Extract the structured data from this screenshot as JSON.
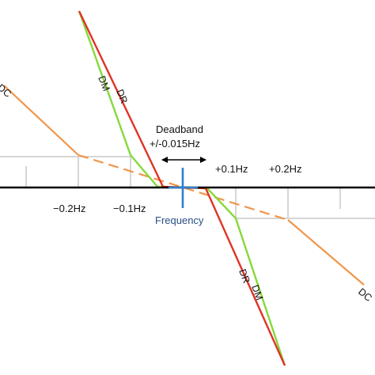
{
  "title": "",
  "axis": {
    "x_label": "Frequency",
    "ticks": [
      {
        "label": "−0.2Hz",
        "value": -0.2
      },
      {
        "label": "−0.1Hz",
        "value": -0.1
      },
      {
        "label": "+0.1Hz",
        "value": 0.1
      },
      {
        "label": "+0.2Hz",
        "value": 0.2
      }
    ]
  },
  "deadband": {
    "line1": "Deadband",
    "line2": "+/-0.015Hz",
    "half_width_hz": 0.015
  },
  "curves": [
    {
      "id": "DC",
      "label_left": "DC",
      "label_right": "DC",
      "color": "#f0964a",
      "style": "solid outside, dashed between −0.2Hz and +0.2Hz"
    },
    {
      "id": "DM",
      "label_upper": "DM",
      "label_lower": "DM",
      "color": "#86d93a"
    },
    {
      "id": "DR",
      "label_upper": "DR",
      "label_lower": "DR",
      "color": "#e03326"
    }
  ],
  "colors": {
    "axis": "#000000",
    "grid": "#d6d6d6",
    "frequency_marker": "#2f7fd0",
    "deadband_arrow": "#000000"
  }
}
